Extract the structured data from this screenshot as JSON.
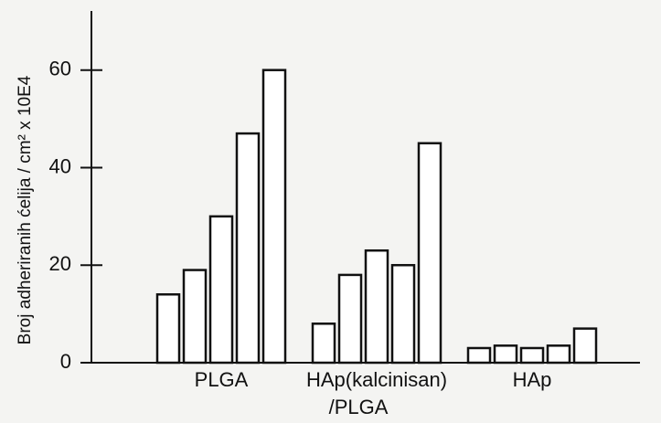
{
  "chart_data": {
    "type": "bar",
    "y_label": "Broj adheriranih ćelija / cm² x 10E4",
    "categories": [
      "PLGA",
      [
        "HAp(kalcinisan)",
        "/PLGA"
      ],
      "HAp"
    ],
    "values": [
      [
        14,
        19,
        30,
        47,
        60
      ],
      [
        8,
        18,
        23,
        20,
        45
      ],
      [
        3,
        3.5,
        3,
        3.5,
        7
      ]
    ],
    "color": "#ffffff",
    "ylim": [
      0,
      65
    ],
    "yticks": [
      0,
      20,
      40,
      60
    ]
  }
}
